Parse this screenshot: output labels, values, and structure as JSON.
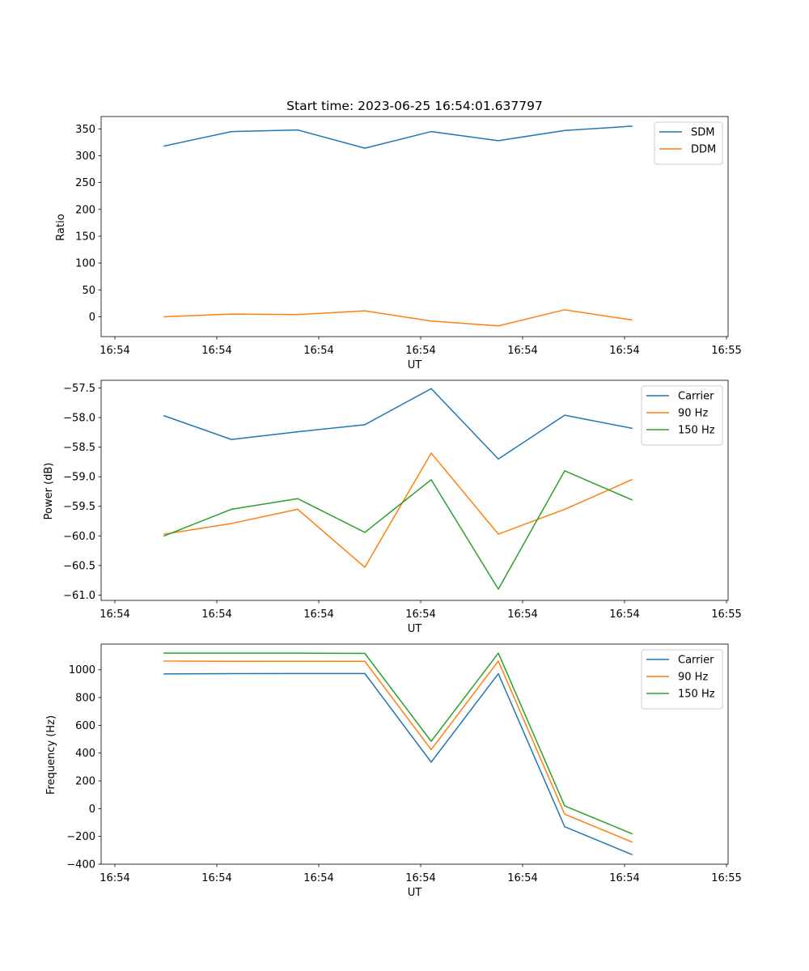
{
  "chart_data": [
    {
      "type": "line",
      "title": "Start time: 2023-06-25 16:54:01.637797",
      "xlabel": "UT",
      "ylabel": "Ratio",
      "ylim": [
        -37,
        373
      ],
      "yticks": [
        0,
        50,
        100,
        150,
        200,
        250,
        300,
        350
      ],
      "xtick_labels": [
        "16:54",
        "16:54",
        "16:54",
        "16:54",
        "16:54",
        "16:54",
        "16:55"
      ],
      "legend_position": "upper right",
      "grid": false,
      "series": [
        {
          "name": "SDM",
          "color": "#1f77b4",
          "values": [
            318,
            345,
            348,
            314,
            345,
            328,
            347,
            355
          ]
        },
        {
          "name": "DDM",
          "color": "#ff7f0e",
          "values": [
            0,
            5,
            4,
            11,
            -8,
            -17,
            13,
            -6
          ]
        }
      ]
    },
    {
      "type": "line",
      "title": "",
      "xlabel": "UT",
      "ylabel": "Power (dB)",
      "ylim": [
        -61.09,
        -57.37
      ],
      "yticks": [
        -61.0,
        -60.5,
        -60.0,
        -59.5,
        -59.0,
        -58.5,
        -58.0,
        -57.5
      ],
      "xtick_labels": [
        "16:54",
        "16:54",
        "16:54",
        "16:54",
        "16:54",
        "16:54",
        "16:55"
      ],
      "legend_position": "upper right",
      "grid": false,
      "series": [
        {
          "name": "Carrier",
          "color": "#1f77b4",
          "values": [
            -57.97,
            -58.37,
            -58.24,
            -58.12,
            -57.51,
            -58.7,
            -57.96,
            -58.18
          ]
        },
        {
          "name": "90 Hz",
          "color": "#ff7f0e",
          "values": [
            -59.97,
            -59.79,
            -59.55,
            -60.53,
            -58.6,
            -59.97,
            -59.55,
            -59.05
          ]
        },
        {
          "name": "150 Hz",
          "color": "#2ca02c",
          "values": [
            -60.0,
            -59.55,
            -59.37,
            -59.94,
            -59.05,
            -60.9,
            -58.9,
            -59.39
          ]
        }
      ]
    },
    {
      "type": "line",
      "title": "",
      "xlabel": "UT",
      "ylabel": "Frequency (Hz)",
      "ylim": [
        -400,
        1185
      ],
      "yticks": [
        -400,
        -200,
        0,
        200,
        400,
        600,
        800,
        1000
      ],
      "xtick_labels": [
        "16:54",
        "16:54",
        "16:54",
        "16:54",
        "16:54",
        "16:54",
        "16:55"
      ],
      "legend_position": "upper right",
      "grid": false,
      "series": [
        {
          "name": "Carrier",
          "color": "#1f77b4",
          "values": [
            970,
            972,
            973,
            973,
            335,
            972,
            -130,
            -330
          ]
        },
        {
          "name": "90 Hz",
          "color": "#ff7f0e",
          "values": [
            1063,
            1061,
            1061,
            1061,
            425,
            1063,
            -40,
            -240
          ]
        },
        {
          "name": "150 Hz",
          "color": "#2ca02c",
          "values": [
            1120,
            1120,
            1120,
            1118,
            485,
            1120,
            20,
            -180
          ]
        }
      ]
    }
  ]
}
